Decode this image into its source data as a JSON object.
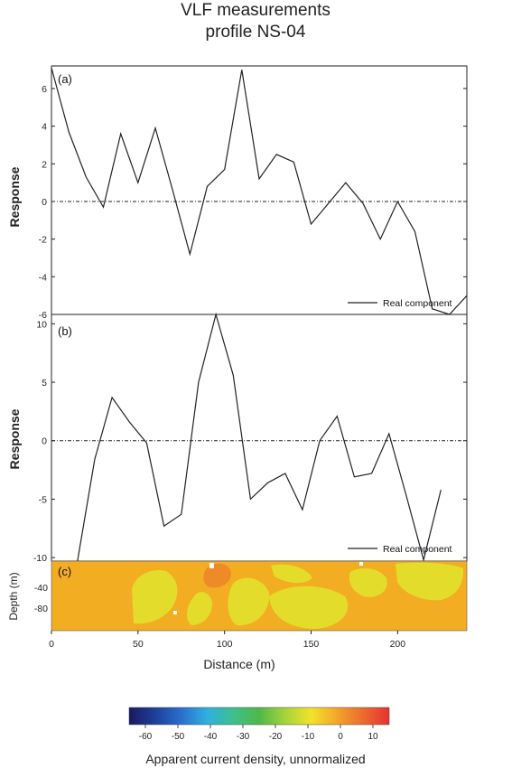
{
  "title": {
    "line1": "VLF measurements",
    "line2": "profile NS-04"
  },
  "chart_data": [
    {
      "type": "line",
      "panel_label": "(a)",
      "ylabel": "Response",
      "ylim": [
        -6,
        7.2
      ],
      "xlim": [
        0,
        240
      ],
      "y_ticks": [
        "6",
        "4",
        "2",
        "0",
        "-2",
        "-4",
        "-6"
      ],
      "y_tick_values": [
        6,
        4,
        2,
        0,
        -2,
        -4,
        -6
      ],
      "series": [
        {
          "name": "Real component",
          "x": [
            0,
            10,
            20,
            30,
            40,
            50,
            60,
            70,
            80,
            90,
            100,
            110,
            120,
            130,
            140,
            150,
            160,
            170,
            180,
            190,
            200,
            210,
            220,
            230,
            240
          ],
          "y": [
            7.1,
            3.7,
            1.3,
            -0.3,
            3.6,
            1.0,
            3.9,
            0.6,
            -2.8,
            0.8,
            1.7,
            7.0,
            1.2,
            2.5,
            2.1,
            -1.2,
            -0.1,
            1.0,
            -0.1,
            -2.0,
            0.0,
            -1.6,
            -5.7,
            -6.3,
            -5.0
          ]
        }
      ],
      "zero_line": true
    },
    {
      "type": "line",
      "panel_label": "(b)",
      "ylabel": "Response",
      "ylim": [
        -10.3,
        10.8
      ],
      "xlim": [
        0,
        240
      ],
      "y_ticks": [
        "10",
        "5",
        "0",
        "-5",
        "-10"
      ],
      "y_tick_values": [
        10,
        5,
        0,
        -5,
        -10
      ],
      "series": [
        {
          "name": "Real component",
          "x": [
            15,
            25,
            35,
            45,
            55,
            65,
            75,
            85,
            95,
            105,
            115,
            125,
            135,
            145,
            155,
            165,
            175,
            185,
            195,
            205,
            215,
            225
          ],
          "y": [
            -10.3,
            -1.6,
            3.7,
            1.6,
            -0.2,
            -7.3,
            -6.3,
            5.0,
            10.8,
            5.6,
            -5.0,
            -3.6,
            -2.8,
            -5.9,
            0.0,
            2.1,
            -3.1,
            -2.8,
            0.6,
            -4.7,
            -10.2,
            -4.2
          ]
        }
      ],
      "zero_line": true
    },
    {
      "type": "heatmap",
      "panel_label": "(c)",
      "ylabel": "Depth (m)",
      "y_ticks": [
        "-40",
        "-80"
      ],
      "xlabel": "Distance (m)",
      "x_ticks": [
        "0",
        "50",
        "100",
        "150",
        "200"
      ],
      "x_tick_values": [
        0,
        50,
        100,
        150,
        200
      ],
      "xlim": [
        0,
        240
      ],
      "colorbar": {
        "label": "Apparent current density, unnormalized",
        "ticks": [
          "-60",
          "-50",
          "-40",
          "-30",
          "-20",
          "-10",
          "0",
          "10"
        ],
        "tick_values": [
          -60,
          -50,
          -40,
          -30,
          -20,
          -10,
          0,
          10
        ],
        "range": [
          -65,
          15
        ],
        "colors": [
          "#1a1a5e",
          "#1f3f9a",
          "#2a6fcf",
          "#2fb0e0",
          "#3dbf8f",
          "#4fb848",
          "#a6d43a",
          "#f2e22a",
          "#f3a52a",
          "#ec6a2d",
          "#e63232"
        ]
      },
      "base_color": "#f2ad22",
      "zones": {
        "yellow": "#e4dc2a",
        "orange": "#ee8a28"
      }
    }
  ]
}
